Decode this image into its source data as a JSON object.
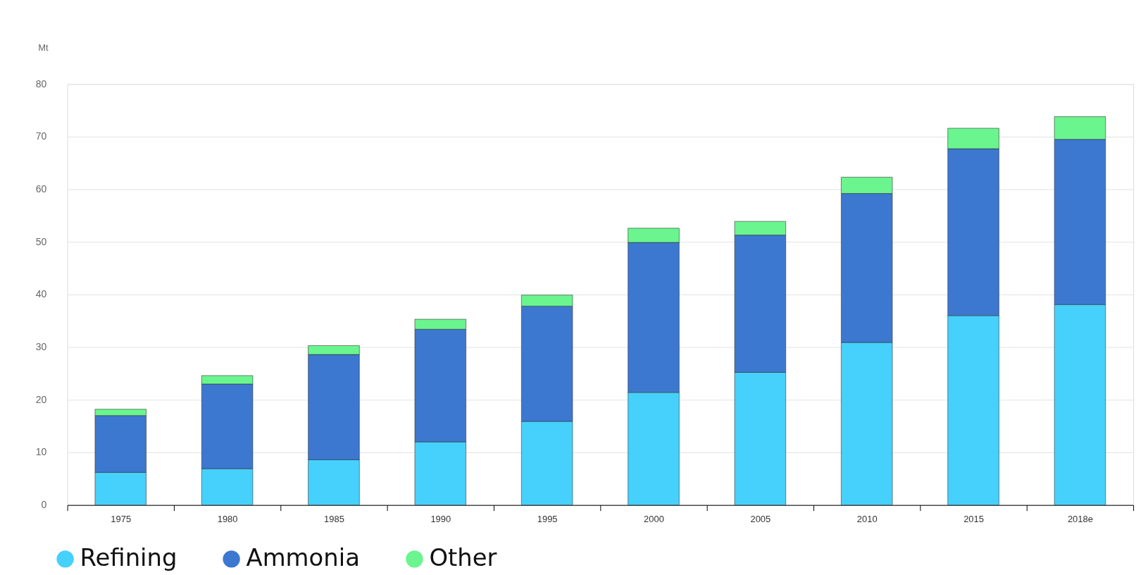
{
  "chart_data": {
    "type": "bar",
    "stacked": true,
    "ylabel": "Mt",
    "categories": [
      "1975",
      "1980",
      "1985",
      "1990",
      "1995",
      "2000",
      "2005",
      "2010",
      "2015",
      "2018e"
    ],
    "series": [
      {
        "name": "Refining",
        "color": "#45d1fc",
        "values": [
          6.2,
          6.9,
          8.6,
          12.0,
          15.9,
          21.4,
          25.2,
          30.9,
          36.0,
          38.1
        ]
      },
      {
        "name": "Ammonia",
        "color": "#3c78d0",
        "values": [
          10.8,
          16.1,
          20.0,
          21.4,
          21.9,
          28.5,
          26.1,
          28.3,
          31.7,
          31.4
        ]
      },
      {
        "name": "Other",
        "color": "#6af58f",
        "values": [
          1.2,
          1.6,
          1.7,
          1.9,
          2.1,
          2.7,
          2.6,
          3.1,
          3.9,
          4.3
        ]
      }
    ],
    "ylim": [
      0,
      80
    ],
    "yticks": [
      0,
      10,
      20,
      30,
      40,
      50,
      60,
      70,
      80
    ],
    "grid": "y",
    "legend": "bottom left"
  }
}
